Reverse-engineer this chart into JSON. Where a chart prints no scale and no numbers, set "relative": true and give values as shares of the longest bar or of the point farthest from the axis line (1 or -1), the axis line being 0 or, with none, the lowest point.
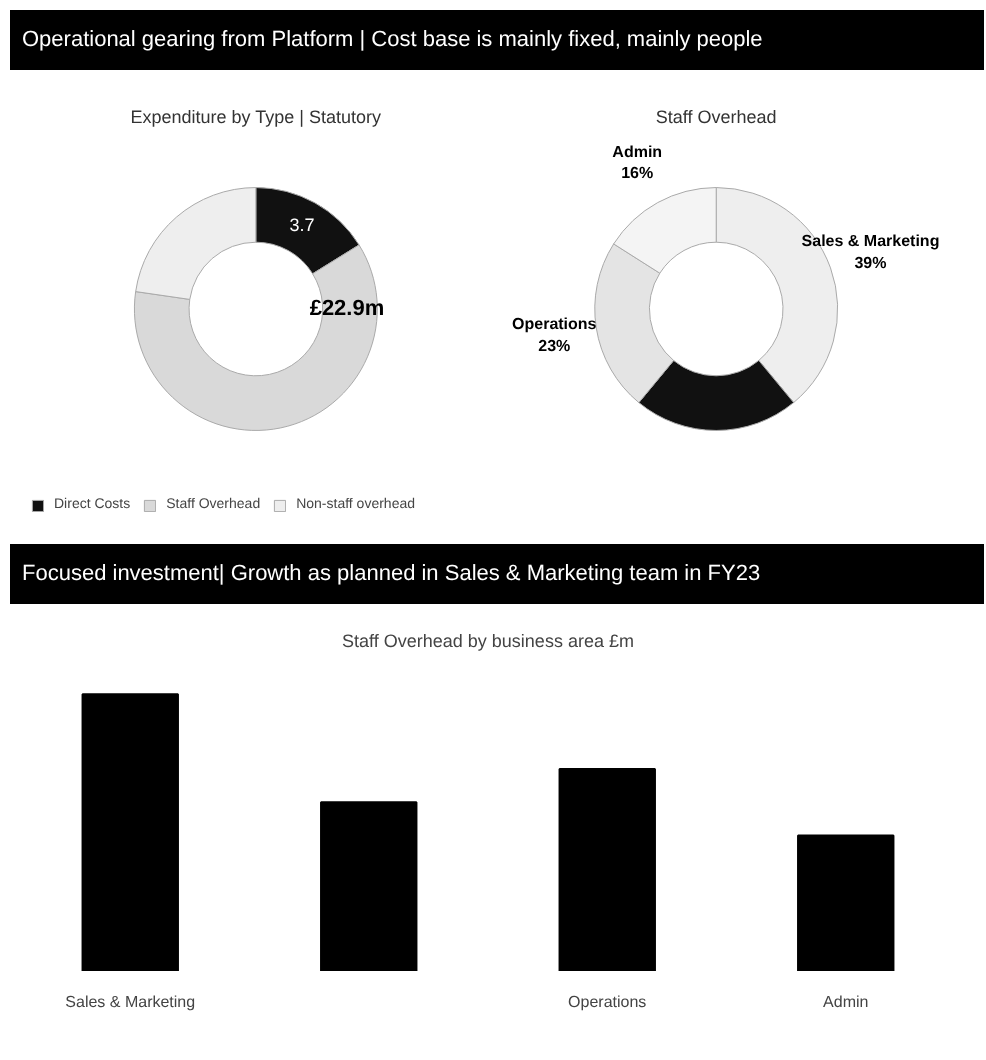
{
  "chart_data": [
    {
      "type": "donut",
      "title": "Expenditure by Type | Statutory",
      "annotations": [
        "Operational gearing from Platform | Cost base is mainly fixed, mainly people",
        "£22.9m"
      ],
      "categories": [
        "Direct Costs",
        "Staff Overhead",
        "Non-staff overhead"
      ],
      "values": [
        3.7,
        14.0,
        5.2
      ],
      "colors": [
        "#111111",
        "#d9d9d9",
        "#eeeeee"
      ],
      "value_labels": [
        "3.7",
        null,
        null
      ],
      "legend": "bottom"
    },
    {
      "type": "donut",
      "title": "Staff Overhead",
      "categories": [
        "Sales & Marketing",
        null,
        "Operations",
        "Admin"
      ],
      "values": [
        39,
        22,
        23,
        16
      ],
      "colors": [
        "#eeeeee",
        "#111111",
        "#e4e4e4",
        "#f4f4f4"
      ],
      "value_labels": [
        "39%",
        null,
        "23%",
        "16%"
      ]
    },
    {
      "type": "bar",
      "title": "Staff Overhead by business area £m",
      "annotations": [
        "Focused investment| Growth as planned in Sales & Marketing team in FY23"
      ],
      "relative": true,
      "categories": [
        "Sales & Marketing",
        null,
        "Operations",
        "Admin"
      ],
      "values": [
        1.0,
        0.61,
        0.73,
        0.49
      ],
      "color": "#000000"
    }
  ]
}
